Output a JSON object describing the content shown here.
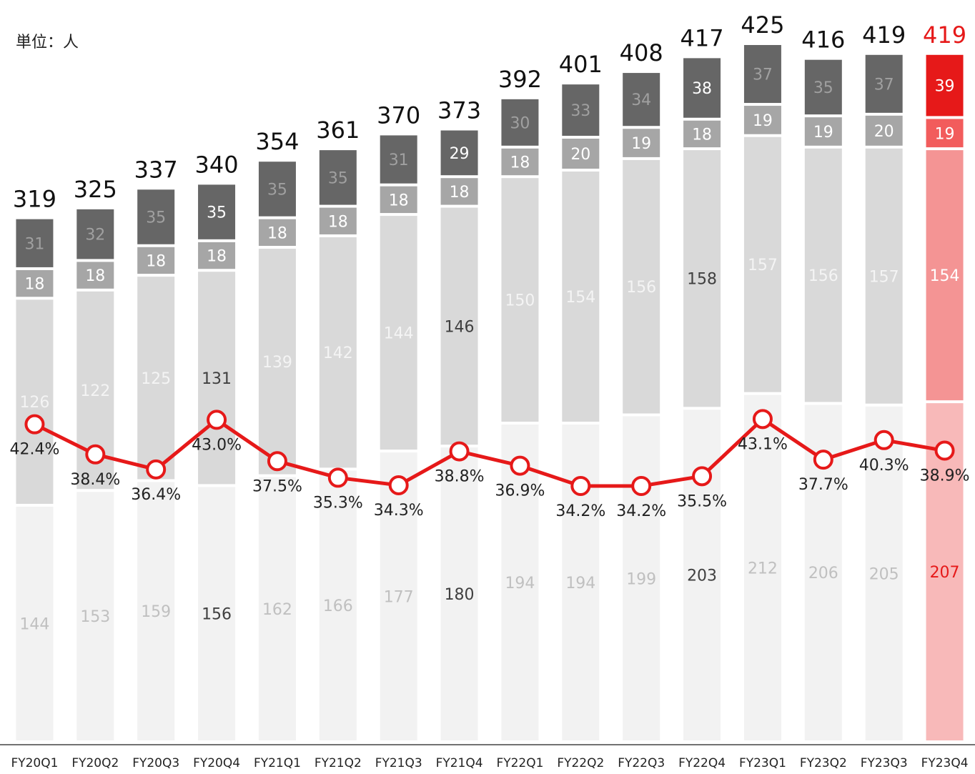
{
  "chart_data": {
    "type": "bar",
    "subtitle": "単位：人",
    "categories": [
      "FY20Q1",
      "FY20Q2",
      "FY20Q3",
      "FY20Q4",
      "FY21Q1",
      "FY21Q2",
      "FY21Q3",
      "FY21Q4",
      "FY22Q1",
      "FY22Q2",
      "FY22Q3",
      "FY22Q4",
      "FY23Q1",
      "FY23Q2",
      "FY23Q3",
      "FY23Q4"
    ],
    "series": [
      {
        "color": "#f2f2f2",
        "last_color": "#f8b9b9",
        "values": [
          144,
          153,
          159,
          156,
          162,
          166,
          177,
          180,
          194,
          194,
          199,
          203,
          212,
          206,
          205,
          207
        ]
      },
      {
        "color": "#d9d9d9",
        "last_color": "#f49494",
        "values": [
          126,
          122,
          125,
          131,
          139,
          142,
          144,
          146,
          150,
          154,
          156,
          158,
          157,
          156,
          157,
          154
        ]
      },
      {
        "color": "#a6a6a6",
        "last_color": "#f25c5c",
        "values": [
          18,
          18,
          18,
          18,
          18,
          18,
          18,
          18,
          18,
          20,
          19,
          18,
          19,
          19,
          20,
          19
        ]
      },
      {
        "color": "#666666",
        "last_color": "#e61919",
        "values": [
          31,
          32,
          35,
          35,
          35,
          35,
          31,
          29,
          30,
          33,
          34,
          38,
          37,
          35,
          37,
          39
        ]
      }
    ],
    "totals": [
      319,
      325,
      337,
      340,
      354,
      361,
      370,
      373,
      392,
      401,
      408,
      417,
      425,
      416,
      419,
      419
    ],
    "line": {
      "type": "line",
      "axis": "y2",
      "color": "#e61919",
      "values": [
        42.4,
        38.4,
        36.4,
        43.0,
        37.5,
        35.3,
        34.3,
        38.8,
        36.9,
        34.2,
        34.2,
        35.5,
        43.1,
        37.7,
        40.3,
        38.9
      ],
      "value_labels": [
        "42.4%",
        "38.4%",
        "36.4%",
        "43.0%",
        "37.5%",
        "35.3%",
        "34.3%",
        "38.8%",
        "36.9%",
        "34.2%",
        "34.2%",
        "35.5%",
        "43.1%",
        "37.7%",
        "40.3%",
        "38.9%"
      ]
    },
    "ylim": [
      0,
      435
    ],
    "y2lim": [
      0,
      95
    ]
  }
}
